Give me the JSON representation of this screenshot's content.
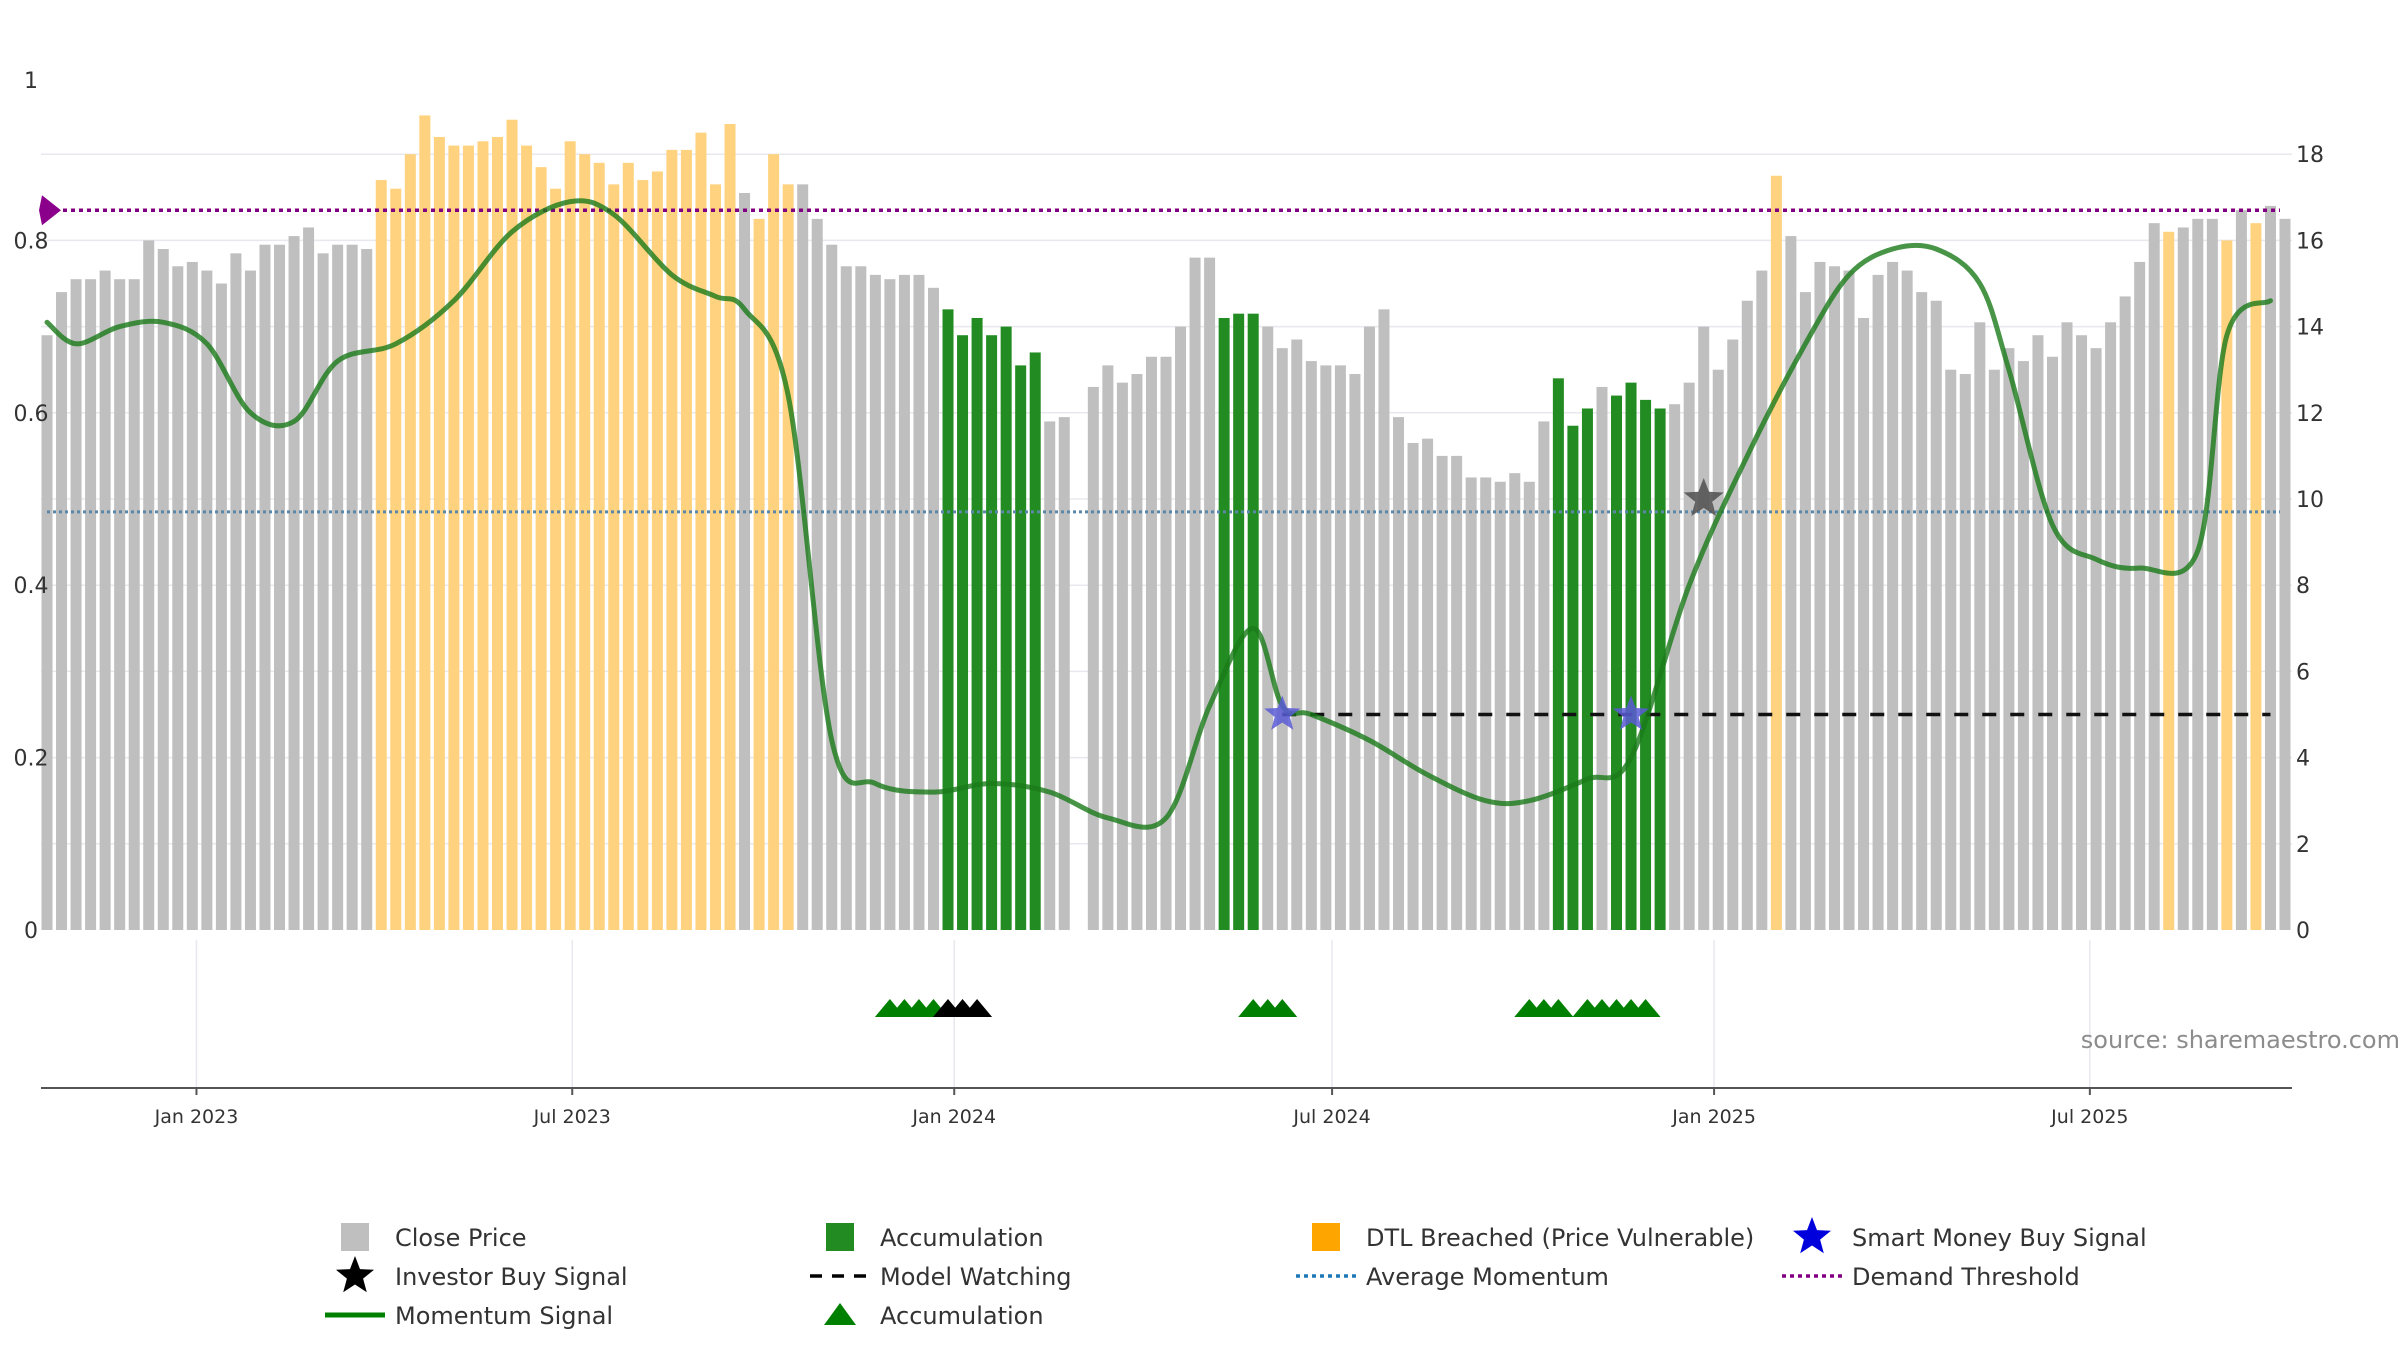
{
  "chart_data": {
    "type": "bar",
    "title": "",
    "source": "source: sharemaestro.com",
    "x": {
      "start_date": "2022-10-21",
      "interval_days": 7,
      "tick_labels": [
        "Jan 2023",
        "Jul 2023",
        "Jan 2024",
        "Jul 2024",
        "Jan 2025",
        "Jul 2025"
      ],
      "tick_dates": [
        "2023-01-01",
        "2023-07-01",
        "2024-01-01",
        "2024-07-01",
        "2025-01-01",
        "2025-07-01"
      ]
    },
    "y_left": {
      "range": [
        0,
        1
      ],
      "ticks": [
        0,
        0.2,
        0.4,
        0.6,
        0.8
      ],
      "tick_labels": [
        "0",
        "0.2",
        "0.4",
        "0.6",
        "0.8"
      ],
      "top_label": "1"
    },
    "y_right": {
      "range": [
        0,
        20
      ],
      "ticks": [
        0,
        2,
        4,
        6,
        8,
        10,
        12,
        14,
        16,
        18
      ],
      "tick_labels": [
        "0",
        "2",
        "4",
        "6",
        "8",
        "10",
        "12",
        "14",
        "16",
        "18"
      ]
    },
    "close_price": {
      "values": [
        13.8,
        14.8,
        15.1,
        15.1,
        15.3,
        15.1,
        15.1,
        16.0,
        15.8,
        15.4,
        15.5,
        15.3,
        15.0,
        15.7,
        15.3,
        15.9,
        15.9,
        16.1,
        16.3,
        15.7,
        15.9,
        15.9,
        15.8,
        17.4,
        17.2,
        18.0,
        18.9,
        18.4,
        18.2,
        18.2,
        18.3,
        18.4,
        18.8,
        18.2,
        17.7,
        17.2,
        18.3,
        18.0,
        17.8,
        17.3,
        17.8,
        17.4,
        17.6,
        18.1,
        18.1,
        18.5,
        17.3,
        18.7,
        17.1,
        16.5,
        18.0,
        17.3,
        17.3,
        16.5,
        15.9,
        15.4,
        15.4,
        15.2,
        15.1,
        15.2,
        15.2,
        14.9,
        14.4,
        13.8,
        14.2,
        13.8,
        14.0,
        13.1,
        13.4,
        11.8,
        11.9,
        null,
        12.6,
        13.1,
        12.7,
        12.9,
        13.3,
        13.3,
        14.0,
        15.6,
        15.6,
        14.2,
        14.3,
        14.3,
        14.0,
        13.5,
        13.7,
        13.2,
        13.1,
        13.1,
        12.9,
        14.0,
        14.4,
        11.9,
        11.3,
        11.4,
        11.0,
        11.0,
        10.5,
        10.5,
        10.4,
        10.6,
        10.4,
        11.8,
        12.8,
        11.7,
        12.1,
        12.6,
        12.4,
        12.7,
        12.3,
        12.1,
        12.2,
        12.7,
        14.0,
        13.0,
        13.7,
        14.6,
        15.3,
        17.5,
        16.1,
        14.8,
        15.5,
        15.4,
        15.3,
        14.2,
        15.2,
        15.5,
        15.3,
        14.8,
        14.6,
        13.0,
        12.9,
        14.1,
        13.0,
        13.5,
        13.2,
        13.8,
        13.3,
        14.1,
        13.8,
        13.5,
        14.1,
        14.7,
        15.5,
        16.4,
        16.2,
        16.3,
        16.5,
        16.5,
        16.0,
        16.7,
        16.4,
        16.8,
        16.5
      ],
      "state": [
        "N",
        "N",
        "N",
        "N",
        "N",
        "N",
        "N",
        "N",
        "N",
        "N",
        "N",
        "N",
        "N",
        "N",
        "N",
        "N",
        "N",
        "N",
        "N",
        "N",
        "N",
        "N",
        "N",
        "D",
        "D",
        "D",
        "D",
        "D",
        "D",
        "D",
        "D",
        "D",
        "D",
        "D",
        "D",
        "D",
        "D",
        "D",
        "D",
        "D",
        "D",
        "D",
        "D",
        "D",
        "D",
        "D",
        "D",
        "D",
        "N",
        "D",
        "D",
        "D",
        "N",
        "N",
        "N",
        "N",
        "N",
        "N",
        "N",
        "N",
        "N",
        "N",
        "A",
        "A",
        "A",
        "A",
        "A",
        "A",
        "A",
        "N",
        "N",
        "N",
        "N",
        "N",
        "N",
        "N",
        "N",
        "N",
        "N",
        "N",
        "N",
        "A",
        "A",
        "A",
        "N",
        "N",
        "N",
        "N",
        "N",
        "N",
        "N",
        "N",
        "N",
        "N",
        "N",
        "N",
        "N",
        "N",
        "N",
        "N",
        "N",
        "N",
        "N",
        "N",
        "A",
        "A",
        "A",
        "N",
        "A",
        "A",
        "A",
        "A",
        "N",
        "N",
        "N",
        "N",
        "N",
        "N",
        "N",
        "D",
        "N",
        "N",
        "N",
        "N",
        "N",
        "N",
        "N",
        "N",
        "N",
        "N",
        "N",
        "N",
        "N",
        "N",
        "N",
        "N",
        "N",
        "N",
        "N",
        "N",
        "N",
        "N",
        "N",
        "N",
        "N",
        "N",
        "D",
        "N",
        "N",
        "N",
        "D",
        "N",
        "D",
        "N"
      ]
    },
    "momentum_signal": {
      "dates": [
        "2022-10-21",
        "2022-11-04",
        "2022-11-25",
        "2022-12-16",
        "2023-01-06",
        "2023-01-27",
        "2023-02-17",
        "2023-03-10",
        "2023-04-07",
        "2023-05-05",
        "2023-06-02",
        "2023-06-30",
        "2023-07-21",
        "2023-08-18",
        "2023-09-08",
        "2023-09-22",
        "2023-10-13",
        "2023-11-03",
        "2023-11-24",
        "2023-12-22",
        "2024-01-19",
        "2024-02-16",
        "2024-03-15",
        "2024-04-12",
        "2024-05-03",
        "2024-05-24",
        "2024-06-07",
        "2024-06-21",
        "2024-07-19",
        "2024-08-16",
        "2024-09-13",
        "2024-10-04",
        "2024-11-01",
        "2024-11-22",
        "2024-12-20",
        "2025-01-17",
        "2025-02-14",
        "2025-03-07",
        "2025-03-28",
        "2025-04-18",
        "2025-05-09",
        "2025-05-23",
        "2025-06-13",
        "2025-07-04",
        "2025-07-25",
        "2025-08-22",
        "2025-09-05",
        "2025-09-26"
      ],
      "values": [
        0.705,
        0.68,
        0.7,
        0.705,
        0.68,
        0.6,
        0.59,
        0.66,
        0.68,
        0.73,
        0.81,
        0.845,
        0.83,
        0.76,
        0.735,
        0.72,
        0.62,
        0.22,
        0.17,
        0.16,
        0.17,
        0.16,
        0.13,
        0.13,
        0.26,
        0.35,
        0.26,
        0.25,
        0.22,
        0.18,
        0.15,
        0.15,
        0.175,
        0.2,
        0.4,
        0.55,
        0.68,
        0.76,
        0.79,
        0.79,
        0.75,
        0.65,
        0.47,
        0.43,
        0.42,
        0.44,
        0.69,
        0.73
      ]
    },
    "average_momentum": 0.485,
    "demand_threshold": 0.835,
    "model_watching": {
      "start_date": "2024-06-07",
      "end_date": "2025-09-26",
      "value": 0.25
    },
    "smart_money_buy_signals": [
      {
        "date": "2024-06-07",
        "value": 0.25
      },
      {
        "date": "2024-11-22",
        "value": 0.25
      }
    ],
    "investor_buy_signals": [
      {
        "date": "2024-12-27",
        "value": 0.5
      }
    ],
    "accumulation_markers": {
      "green_dates": [
        "2023-12-01",
        "2023-12-08",
        "2023-12-15",
        "2023-12-22",
        "2024-05-24",
        "2024-05-31",
        "2024-06-07",
        "2024-10-04",
        "2024-10-11",
        "2024-10-18",
        "2024-11-01",
        "2024-11-08",
        "2024-11-15",
        "2024-11-22",
        "2024-11-29"
      ],
      "black_dates": [
        "2023-12-29",
        "2024-01-05",
        "2024-01-12"
      ]
    },
    "legend": {
      "position": "bottom",
      "items": [
        {
          "label": "Close Price",
          "icon": "square-swatch",
          "color": "#bfbfbf"
        },
        {
          "label": "Accumulation",
          "icon": "square-swatch",
          "color": "#228b22"
        },
        {
          "label": "DTL Breached (Price Vulnerable)",
          "icon": "square-swatch",
          "color": "#ffa500"
        },
        {
          "label": "Smart Money Buy Signal",
          "icon": "star-icon",
          "color": "#0000dd"
        },
        {
          "label": "Investor Buy Signal",
          "icon": "star-icon",
          "color": "#000000"
        },
        {
          "label": "Model Watching",
          "icon": "dashed-line",
          "color": "#000000"
        },
        {
          "label": "Average Momentum",
          "icon": "dotted-line",
          "color": "#1f77b4"
        },
        {
          "label": "Demand Threshold",
          "icon": "dotted-line",
          "color": "#800080"
        },
        {
          "label": "Momentum Signal",
          "icon": "solid-line",
          "color": "#008000"
        },
        {
          "label": "Accumulation",
          "icon": "triangle-icon",
          "color": "#008000"
        }
      ]
    },
    "colors": {
      "price_neutral": "#bfbfbf",
      "price_accumulation": "#228b22",
      "price_dtl": "#ffd27f",
      "momentum": "#1a7a1a",
      "average_momentum": "#5b88a8",
      "demand_threshold": "#800080",
      "demand_marker": "#8b008b",
      "smart_money": "#5a5ad6",
      "investor": "#555555",
      "accumulation_marker": "#008000",
      "accumulation_marker_dark": "#000000"
    }
  }
}
